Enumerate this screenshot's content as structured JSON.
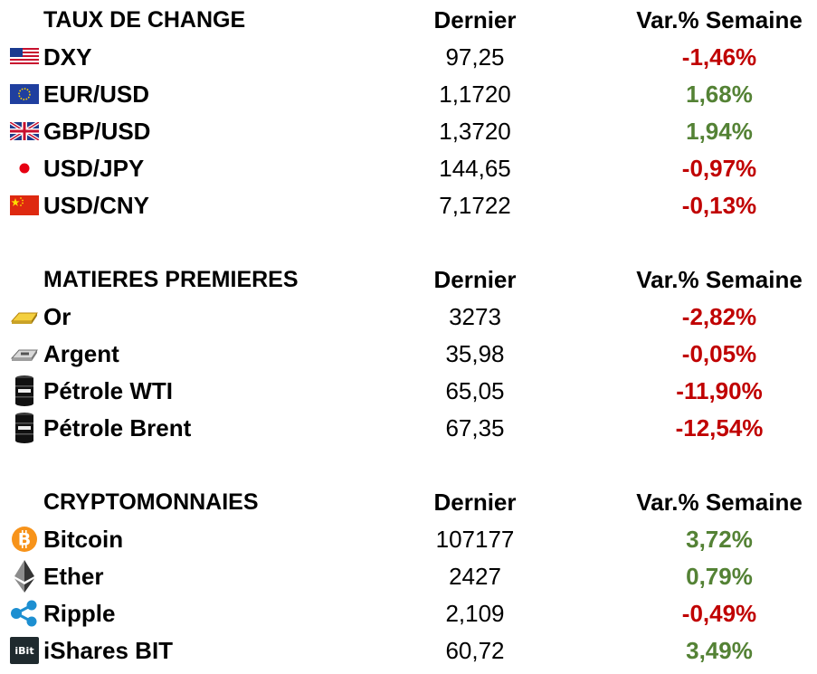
{
  "colors": {
    "negative": "#c00000",
    "positive": "#548235"
  },
  "sections": [
    {
      "title": "TAUX DE CHANGE",
      "col_last": "Dernier",
      "col_var": "Var.% Semaine",
      "rows": [
        {
          "icon": "us-flag-icon",
          "name": "DXY",
          "last": "97,25",
          "var": "-1,46%",
          "trend": "neg"
        },
        {
          "icon": "eu-flag-icon",
          "name": "EUR/USD",
          "last": "1,1720",
          "var": "1,68%",
          "trend": "pos"
        },
        {
          "icon": "uk-flag-icon",
          "name": "GBP/USD",
          "last": "1,3720",
          "var": "1,94%",
          "trend": "pos"
        },
        {
          "icon": "japan-flag-icon",
          "name": "USD/JPY",
          "last": "144,65",
          "var": "-0,97%",
          "trend": "neg"
        },
        {
          "icon": "china-flag-icon",
          "name": "USD/CNY",
          "last": "7,1722",
          "var": "-0,13%",
          "trend": "neg"
        }
      ]
    },
    {
      "title": "MATIERES PREMIERES",
      "col_last": "Dernier",
      "col_var": "Var.% Semaine",
      "rows": [
        {
          "icon": "gold-bar-icon",
          "name": "Or",
          "last": "3273",
          "var": "-2,82%",
          "trend": "neg"
        },
        {
          "icon": "silver-bar-icon",
          "name": "Argent",
          "last": "35,98",
          "var": "-0,05%",
          "trend": "neg"
        },
        {
          "icon": "oil-barrel-icon",
          "name": "Pétrole WTI",
          "last": "65,05",
          "var": "-11,90%",
          "trend": "neg"
        },
        {
          "icon": "oil-barrel-icon",
          "name": "Pétrole Brent",
          "last": "67,35",
          "var": "-12,54%",
          "trend": "neg"
        }
      ]
    },
    {
      "title": "CRYPTOMONNAIES",
      "col_last": "Dernier",
      "col_var": "Var.% Semaine",
      "rows": [
        {
          "icon": "bitcoin-icon",
          "name": "Bitcoin",
          "last": "107177",
          "var": "3,72%",
          "trend": "pos"
        },
        {
          "icon": "ethereum-icon",
          "name": "Ether",
          "last": "2427",
          "var": "0,79%",
          "trend": "pos"
        },
        {
          "icon": "ripple-icon",
          "name": "Ripple",
          "last": "2,109",
          "var": "-0,49%",
          "trend": "neg"
        },
        {
          "icon": "ishares-bit-icon",
          "name": "iShares BIT",
          "last": "60,72",
          "var": "3,49%",
          "trend": "pos",
          "icon_label": "iBit"
        }
      ]
    }
  ]
}
